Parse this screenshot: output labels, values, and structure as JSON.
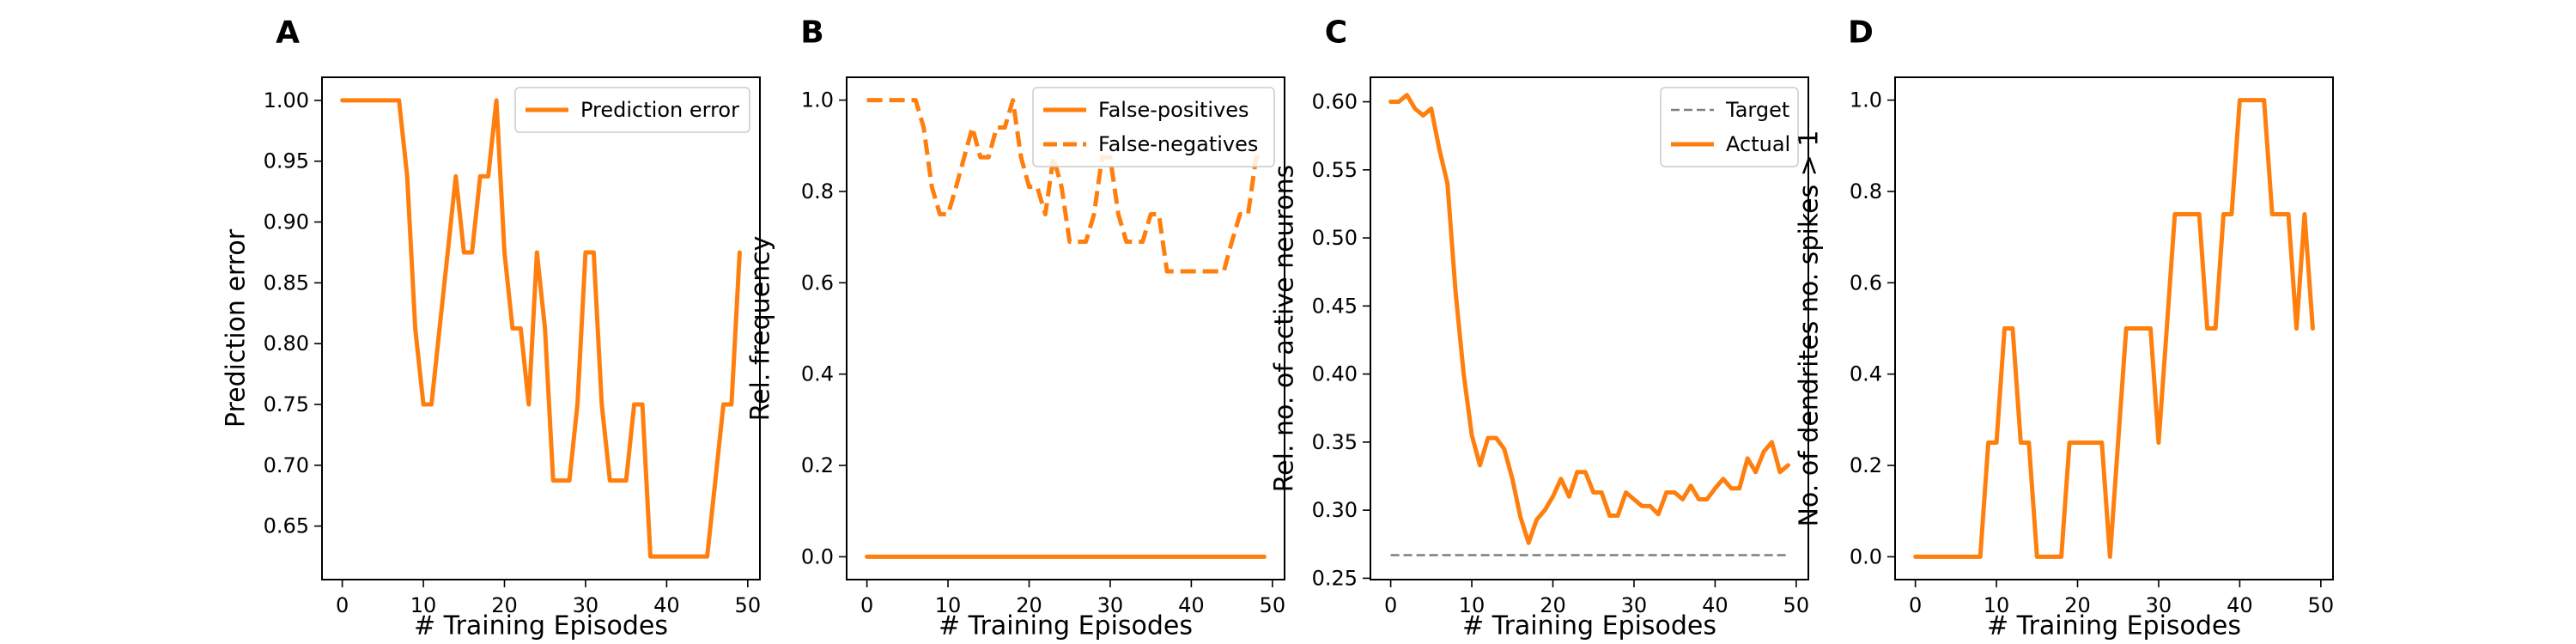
{
  "colors": {
    "orange": "#ff7f0e",
    "gray": "#7f7f7f",
    "axis": "#000000",
    "legend_border": "#cccccc"
  },
  "chart_data": [
    {
      "panel": "A",
      "type": "line",
      "xlabel": "# Training Episodes",
      "ylabel": "Prediction error",
      "xlim": [
        -2.5,
        51.5
      ],
      "ylim": [
        0.606,
        1.019
      ],
      "xticks": [
        0,
        10,
        20,
        30,
        40,
        50
      ],
      "yticks": [
        0.65,
        0.7,
        0.75,
        0.8,
        0.85,
        0.9,
        0.95,
        1.0
      ],
      "ytick_labels": [
        "0.65",
        "0.70",
        "0.75",
        "0.80",
        "0.85",
        "0.90",
        "0.95",
        "1.00"
      ],
      "legend": {
        "position": "upper-right"
      },
      "series": [
        {
          "name": "Prediction error",
          "style": "solid",
          "color": "#ff7f0e",
          "x": [
            0,
            1,
            2,
            3,
            4,
            5,
            6,
            7,
            8,
            9,
            10,
            11,
            12,
            13,
            14,
            15,
            16,
            17,
            18,
            19,
            20,
            21,
            22,
            23,
            24,
            25,
            26,
            27,
            28,
            29,
            30,
            31,
            32,
            33,
            34,
            35,
            36,
            37,
            38,
            39,
            40,
            41,
            42,
            43,
            44,
            45,
            46,
            47,
            48,
            49
          ],
          "y": [
            1.0,
            1.0,
            1.0,
            1.0,
            1.0,
            1.0,
            1.0,
            1.0,
            0.9375,
            0.8125,
            0.75,
            0.75,
            0.8125,
            0.875,
            0.9375,
            0.875,
            0.875,
            0.9375,
            0.9375,
            1.0,
            0.875,
            0.8125,
            0.8125,
            0.75,
            0.875,
            0.8125,
            0.6875,
            0.6875,
            0.6875,
            0.75,
            0.875,
            0.875,
            0.75,
            0.6875,
            0.6875,
            0.6875,
            0.75,
            0.75,
            0.625,
            0.625,
            0.625,
            0.625,
            0.625,
            0.625,
            0.625,
            0.625,
            0.6875,
            0.75,
            0.75,
            0.875
          ]
        }
      ]
    },
    {
      "panel": "B",
      "type": "line",
      "xlabel": "# Training Episodes",
      "ylabel": "Rel. frequency",
      "xlim": [
        -2.5,
        51.5
      ],
      "ylim": [
        -0.05,
        1.05
      ],
      "xticks": [
        0,
        10,
        20,
        30,
        40,
        50
      ],
      "yticks": [
        0.0,
        0.2,
        0.4,
        0.6,
        0.8,
        1.0
      ],
      "ytick_labels": [
        "0.0",
        "0.2",
        "0.4",
        "0.6",
        "0.8",
        "1.0"
      ],
      "legend": {
        "position": "upper-right"
      },
      "series": [
        {
          "name": "False-positives",
          "style": "solid",
          "color": "#ff7f0e",
          "x": [
            0,
            1,
            2,
            3,
            4,
            5,
            6,
            7,
            8,
            9,
            10,
            11,
            12,
            13,
            14,
            15,
            16,
            17,
            18,
            19,
            20,
            21,
            22,
            23,
            24,
            25,
            26,
            27,
            28,
            29,
            30,
            31,
            32,
            33,
            34,
            35,
            36,
            37,
            38,
            39,
            40,
            41,
            42,
            43,
            44,
            45,
            46,
            47,
            48,
            49
          ],
          "y": [
            0,
            0,
            0,
            0,
            0,
            0,
            0,
            0,
            0,
            0,
            0,
            0,
            0,
            0,
            0,
            0,
            0,
            0,
            0,
            0,
            0,
            0,
            0,
            0,
            0,
            0,
            0,
            0,
            0,
            0,
            0,
            0,
            0,
            0,
            0,
            0,
            0,
            0,
            0,
            0,
            0,
            0,
            0,
            0,
            0,
            0,
            0,
            0,
            0,
            0
          ]
        },
        {
          "name": "False-negatives",
          "style": "dashed",
          "color": "#ff7f0e",
          "x": [
            0,
            1,
            2,
            3,
            4,
            5,
            6,
            7,
            8,
            9,
            10,
            11,
            12,
            13,
            14,
            15,
            16,
            17,
            18,
            19,
            20,
            21,
            22,
            23,
            24,
            25,
            26,
            27,
            28,
            29,
            30,
            31,
            32,
            33,
            34,
            35,
            36,
            37,
            38,
            39,
            40,
            41,
            42,
            43,
            44,
            45,
            46,
            47,
            48,
            49
          ],
          "y": [
            1.0,
            1.0,
            1.0,
            1.0,
            1.0,
            1.0,
            1.0,
            0.94,
            0.81,
            0.75,
            0.75,
            0.81,
            0.875,
            0.94,
            0.875,
            0.875,
            0.94,
            0.94,
            1.0,
            0.875,
            0.81,
            0.81,
            0.75,
            0.875,
            0.81,
            0.69,
            0.69,
            0.69,
            0.75,
            0.875,
            0.875,
            0.75,
            0.69,
            0.69,
            0.69,
            0.75,
            0.75,
            0.625,
            0.625,
            0.625,
            0.625,
            0.625,
            0.625,
            0.625,
            0.625,
            0.69,
            0.75,
            0.75,
            0.875,
            0.875
          ]
        }
      ]
    },
    {
      "panel": "C",
      "type": "line",
      "xlabel": "# Training Episodes",
      "ylabel": "Rel. no. of active neurons",
      "xlim": [
        -2.5,
        51.5
      ],
      "ylim": [
        0.249,
        0.618
      ],
      "xticks": [
        0,
        10,
        20,
        30,
        40,
        50
      ],
      "yticks": [
        0.25,
        0.3,
        0.35,
        0.4,
        0.45,
        0.5,
        0.55,
        0.6
      ],
      "ytick_labels": [
        "0.25",
        "0.30",
        "0.35",
        "0.40",
        "0.45",
        "0.50",
        "0.55",
        "0.60"
      ],
      "legend": {
        "position": "upper-right"
      },
      "series": [
        {
          "name": "Target",
          "style": "dashed",
          "color": "#7f7f7f",
          "x": [
            0,
            49
          ],
          "y": [
            0.267,
            0.267
          ]
        },
        {
          "name": "Actual",
          "style": "solid",
          "color": "#ff7f0e",
          "x": [
            0,
            1,
            2,
            3,
            4,
            5,
            6,
            7,
            8,
            9,
            10,
            11,
            12,
            13,
            14,
            15,
            16,
            17,
            18,
            19,
            20,
            21,
            22,
            23,
            24,
            25,
            26,
            27,
            28,
            29,
            30,
            31,
            32,
            33,
            34,
            35,
            36,
            37,
            38,
            39,
            40,
            41,
            42,
            43,
            44,
            45,
            46,
            47,
            48,
            49
          ],
          "y": [
            0.6,
            0.6,
            0.605,
            0.595,
            0.59,
            0.595,
            0.565,
            0.54,
            0.46,
            0.4,
            0.355,
            0.333,
            0.353,
            0.353,
            0.345,
            0.323,
            0.295,
            0.276,
            0.293,
            0.3,
            0.31,
            0.323,
            0.31,
            0.328,
            0.328,
            0.313,
            0.313,
            0.296,
            0.296,
            0.313,
            0.308,
            0.303,
            0.303,
            0.297,
            0.313,
            0.313,
            0.308,
            0.318,
            0.308,
            0.308,
            0.316,
            0.323,
            0.316,
            0.316,
            0.338,
            0.328,
            0.343,
            0.35,
            0.328,
            0.333
          ]
        }
      ]
    },
    {
      "panel": "D",
      "type": "line",
      "xlabel": "# Training Episodes",
      "ylabel": "No. of dendrites no. spikes > 1",
      "xlim": [
        -2.5,
        51.5
      ],
      "ylim": [
        -0.05,
        1.05
      ],
      "xticks": [
        0,
        10,
        20,
        30,
        40,
        50
      ],
      "yticks": [
        0.0,
        0.2,
        0.4,
        0.6,
        0.8,
        1.0
      ],
      "ytick_labels": [
        "0.0",
        "0.2",
        "0.4",
        "0.6",
        "0.8",
        "1.0"
      ],
      "series": [
        {
          "name": "",
          "style": "solid",
          "color": "#ff7f0e",
          "x": [
            0,
            1,
            2,
            3,
            4,
            5,
            6,
            7,
            8,
            9,
            10,
            11,
            12,
            13,
            14,
            15,
            16,
            17,
            18,
            19,
            20,
            21,
            22,
            23,
            24,
            25,
            26,
            27,
            28,
            29,
            30,
            31,
            32,
            33,
            34,
            35,
            36,
            37,
            38,
            39,
            40,
            41,
            42,
            43,
            44,
            45,
            46,
            47,
            48,
            49
          ],
          "y": [
            0,
            0,
            0,
            0,
            0,
            0,
            0,
            0,
            0,
            0.25,
            0.25,
            0.5,
            0.5,
            0.25,
            0.25,
            0,
            0,
            0,
            0,
            0.25,
            0.25,
            0.25,
            0.25,
            0.25,
            0,
            0.25,
            0.5,
            0.5,
            0.5,
            0.5,
            0.25,
            0.5,
            0.75,
            0.75,
            0.75,
            0.75,
            0.5,
            0.5,
            0.75,
            0.75,
            1.0,
            1.0,
            1.0,
            1.0,
            0.75,
            0.75,
            0.75,
            0.5,
            0.75,
            0.5
          ]
        }
      ]
    }
  ]
}
